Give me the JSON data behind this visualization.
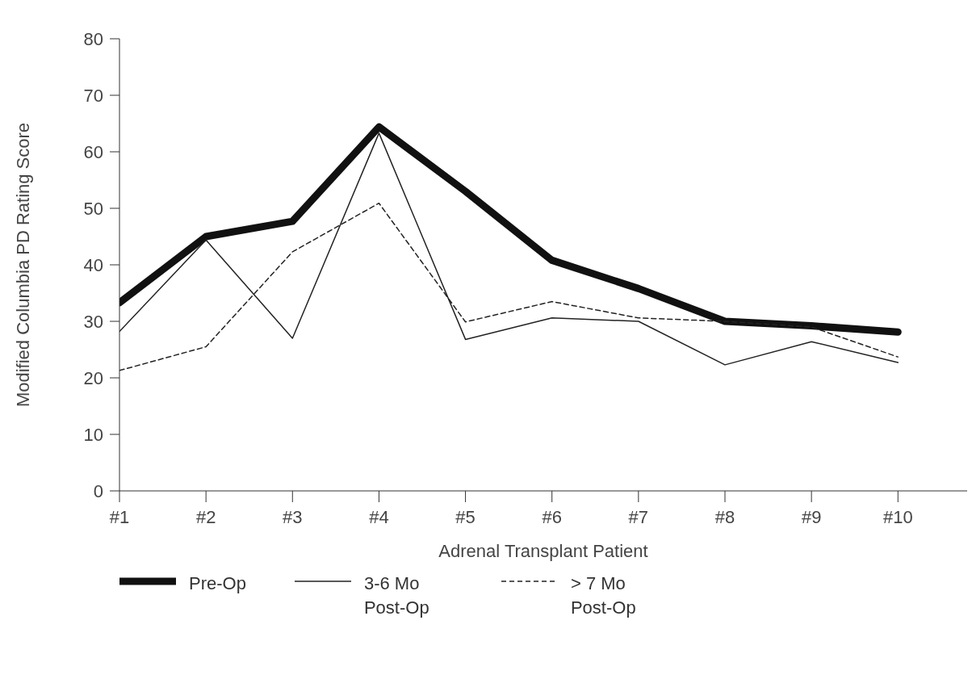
{
  "chart_data": {
    "type": "line",
    "xlabel": "Adrenal Transplant Patient",
    "ylabel": "Modified Columbia PD Rating Score",
    "categories": [
      "#1",
      "#2",
      "#3",
      "#4",
      "#5",
      "#6",
      "#7",
      "#8",
      "#9",
      "#10"
    ],
    "series": [
      {
        "name": "Pre-Op",
        "color": "#111111",
        "line_style": "solid",
        "values": [
          33.3,
          45,
          47.7,
          64.4,
          53,
          40.8,
          35.8,
          30,
          29.2,
          28.1
        ]
      },
      {
        "name": "3-6 Mo Post-Op",
        "color": "#222222",
        "line_style": "solid",
        "values": [
          28.2,
          44.4,
          27,
          63.3,
          26.8,
          30.6,
          30,
          22.3,
          26.4,
          22.7
        ]
      },
      {
        "name": "> 7 Mo Post-Op",
        "color": "#222222",
        "line_style": "dashed",
        "values": [
          21.3,
          25.5,
          42.3,
          50.9,
          29.9,
          33.5,
          30.6,
          30,
          29,
          23.7
        ]
      }
    ],
    "ylim": [
      0,
      80
    ],
    "yticks": [
      0,
      10,
      20,
      30,
      40,
      50,
      60,
      70,
      80
    ],
    "grid": false,
    "legend": "bottom",
    "marker": "none"
  }
}
